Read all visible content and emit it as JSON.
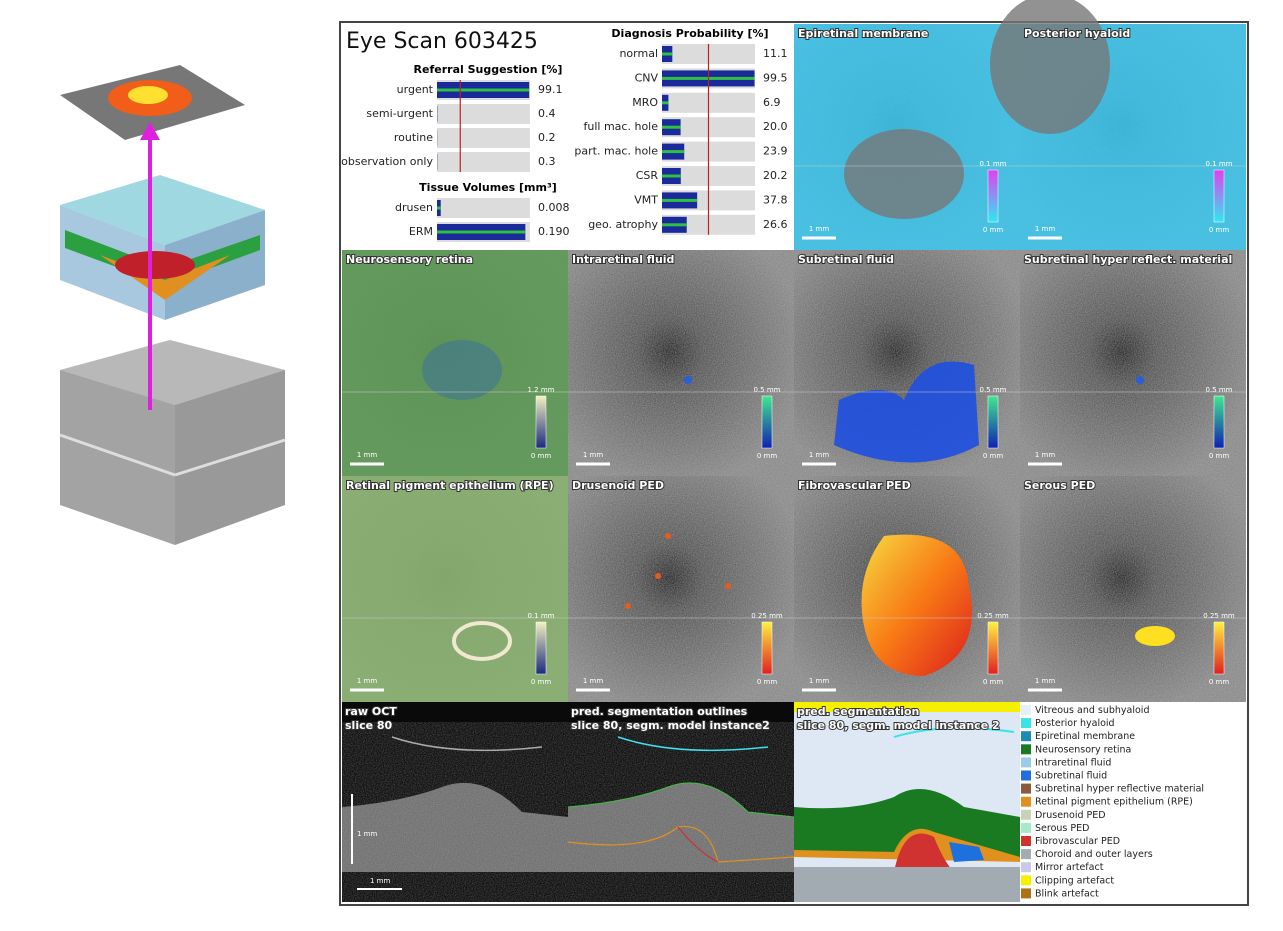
{
  "header": {
    "title": "Eye Scan 603425"
  },
  "referral": {
    "title": "Referral Suggestion [%]",
    "labels": [
      "urgent",
      "semi-urgent",
      "routine",
      "observation only"
    ],
    "values": [
      99.1,
      0.4,
      0.2,
      0.3
    ],
    "xlim": [
      0,
      100
    ],
    "threshold": 25
  },
  "tissue_volumes": {
    "title": "Tissue Volumes [mm³]",
    "labels": [
      "drusen",
      "ERM"
    ],
    "values": [
      0.008,
      0.19
    ],
    "value_labels": [
      "0.008",
      "0.190"
    ],
    "xlim": [
      0,
      0.2
    ]
  },
  "diagnosis": {
    "title": "Diagnosis Probability [%]",
    "labels": [
      "normal",
      "CNV",
      "MRO",
      "full mac. hole",
      "part. mac. hole",
      "CSR",
      "VMT",
      "geo. atrophy"
    ],
    "values": [
      11.1,
      99.5,
      6.9,
      20.0,
      23.9,
      20.2,
      37.8,
      26.6
    ],
    "value_labels": [
      "11.1",
      "99.5",
      "6.9",
      "20.0",
      "23.9",
      "20.2",
      "37.8",
      "26.6"
    ],
    "xlim": [
      0,
      100
    ],
    "threshold": 50
  },
  "maps": [
    {
      "title": "Epiretinal membrane",
      "scale_max": "0.1 mm",
      "scale_min": "0 mm",
      "scale_bar": "1 mm",
      "tint": "#3cc8ee",
      "colorbar": [
        "#e040f0",
        "#30e8f0"
      ]
    },
    {
      "title": "Posterior hyaloid",
      "scale_max": "0.1 mm",
      "scale_min": "0 mm",
      "scale_bar": "1 mm",
      "tint": "#3cc8ee",
      "colorbar": [
        "#e040f0",
        "#30e8f0"
      ]
    },
    {
      "title": "Neurosensory retina",
      "scale_max": "1.2 mm",
      "scale_min": "0 mm",
      "scale_bar": "1 mm",
      "tint": "#5f9a58",
      "colorbar": [
        "#f4f0c0",
        "#1a2a80"
      ]
    },
    {
      "title": "Intraretinal fluid",
      "scale_max": "0.5 mm",
      "scale_min": "0 mm",
      "scale_bar": "1 mm",
      "tint": "#2a5fd8",
      "colorbar": [
        "#40e890",
        "#1020b0"
      ]
    },
    {
      "title": "Subretinal fluid",
      "scale_max": "0.5 mm",
      "scale_min": "0 mm",
      "scale_bar": "1 mm",
      "tint": "#1e4fe0",
      "colorbar": [
        "#40e890",
        "#1020b0"
      ]
    },
    {
      "title": "Subretinal hyper reflect. material",
      "scale_max": "0.5 mm",
      "scale_min": "0 mm",
      "scale_bar": "1 mm",
      "tint": "#2a5fd8",
      "colorbar": [
        "#40e890",
        "#1020b0"
      ]
    },
    {
      "title": "Retinal pigment epithelium (RPE)",
      "scale_max": "0.1 mm",
      "scale_min": "0 mm",
      "scale_bar": "1 mm",
      "tint": "#8ab070",
      "colorbar": [
        "#f4f0c0",
        "#1a2a80"
      ]
    },
    {
      "title": "Drusenoid PED",
      "scale_max": "0.25 mm",
      "scale_min": "0 mm",
      "scale_bar": "1 mm",
      "tint": "#e85a20",
      "colorbar": [
        "#fff040",
        "#e02020"
      ]
    },
    {
      "title": "Fibrovascular PED",
      "scale_max": "0.25 mm",
      "scale_min": "0 mm",
      "scale_bar": "1 mm",
      "tint": "#f6a020",
      "colorbar": [
        "#fff040",
        "#e02020"
      ]
    },
    {
      "title": "Serous PED",
      "scale_max": "0.25 mm",
      "scale_min": "0 mm",
      "scale_bar": "1 mm",
      "tint": "#f8d020",
      "colorbar": [
        "#fff040",
        "#e02020"
      ]
    }
  ],
  "oct": [
    {
      "title": "raw OCT",
      "subtitle": "slice 80",
      "scale_vertical": "1 mm",
      "scale_horizontal": "1 mm"
    },
    {
      "title": "pred. segmentation outlines",
      "subtitle": "slice 80, segm. model instance2"
    },
    {
      "title": "pred. segmentation",
      "subtitle": "slice 80, segm. model instance 2"
    }
  ],
  "legend": [
    {
      "label": "Vitreous and subhyaloid",
      "color": "#e6eef8"
    },
    {
      "label": "Posterior hyaloid",
      "color": "#38e4ec"
    },
    {
      "label": "Epiretinal membrane",
      "color": "#1a8cb4"
    },
    {
      "label": "Neurosensory retina",
      "color": "#1a7a22"
    },
    {
      "label": "Intraretinal fluid",
      "color": "#9ccbea"
    },
    {
      "label": "Subretinal fluid",
      "color": "#1e70dc"
    },
    {
      "label": "Subretinal hyper reflective material",
      "color": "#8a5a3c"
    },
    {
      "label": "Retinal pigment epithelium (RPE)",
      "color": "#e0901c"
    },
    {
      "label": "Drusenoid PED",
      "color": "#c8d2b4"
    },
    {
      "label": "Serous PED",
      "color": "#a6eac8"
    },
    {
      "label": "Fibrovascular PED",
      "color": "#d03232"
    },
    {
      "label": "Choroid and outer layers",
      "color": "#a2aab2"
    },
    {
      "label": "Mirror artefact",
      "color": "#cacae8"
    },
    {
      "label": "Clipping artefact",
      "color": "#f6f000"
    },
    {
      "label": "Blink artefact",
      "color": "#b07014"
    }
  ]
}
